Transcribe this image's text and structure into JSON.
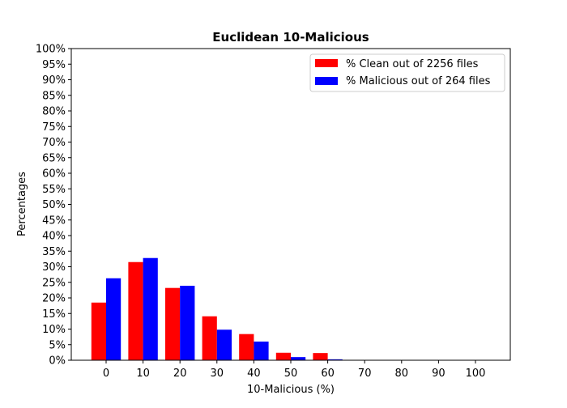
{
  "chart_data": {
    "type": "bar",
    "title": "Euclidean 10-Malicious",
    "xlabel": "10-Malicious (%)",
    "ylabel": "Percentages",
    "categories": [
      "0",
      "10",
      "20",
      "30",
      "40",
      "50",
      "60",
      "70",
      "80",
      "90",
      "100"
    ],
    "series": [
      {
        "name": "% Clean out of 2256 files",
        "color": "#ff0000",
        "values": [
          18.5,
          31.5,
          23.2,
          14.1,
          8.4,
          2.4,
          2.3,
          0,
          0,
          0,
          0
        ]
      },
      {
        "name": "% Malicious out of 264 files",
        "color": "#0000ff",
        "values": [
          26.3,
          32.8,
          23.9,
          9.8,
          6.0,
          1.0,
          0.3,
          0,
          0,
          0,
          0
        ]
      }
    ],
    "ylim": [
      0,
      100
    ],
    "yticks": [
      "0%",
      "5%",
      "10%",
      "15%",
      "20%",
      "25%",
      "30%",
      "35%",
      "40%",
      "45%",
      "50%",
      "55%",
      "60%",
      "65%",
      "70%",
      "75%",
      "80%",
      "85%",
      "90%",
      "95%",
      "100%"
    ],
    "grid": false,
    "legend_position": "top-right"
  }
}
